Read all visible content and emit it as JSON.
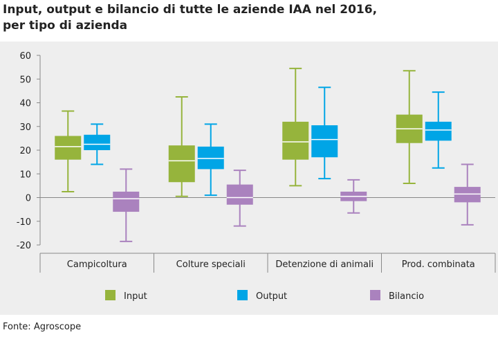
{
  "title_lines": [
    "Input, output e bilancio di tutte le aziende IAA nel 2016,",
    "per tipo di azienda"
  ],
  "source": "Fonte: Agroscope",
  "colors": {
    "input": "#96b43c",
    "output": "#00a5e6",
    "bilancio": "#aa82be",
    "axis": "#888888",
    "text": "#222222"
  },
  "chart_data": {
    "type": "boxplot",
    "title": "Input, output e bilancio di tutte le aziende IAA nel 2016, per tipo di azienda",
    "ylim": [
      -20,
      60
    ],
    "yticks": [
      -20,
      -10,
      0,
      10,
      20,
      30,
      40,
      50,
      60
    ],
    "ytick_labels": [
      "-20",
      "-10",
      "0",
      "10",
      "20",
      "30",
      "40",
      "50",
      "60"
    ],
    "categories": [
      "Campicoltura",
      "Colture speciali",
      "Detenzione di animali",
      "Prod. combinata"
    ],
    "legend": [
      "Input",
      "Output",
      "Bilancio"
    ],
    "legend_position": "bottom",
    "series": [
      {
        "name": "Input",
        "color": "#96b43c",
        "boxes": [
          {
            "min": 2.5,
            "q1": 16,
            "median": 21.5,
            "q3": 26,
            "max": 36.5
          },
          {
            "min": 0.5,
            "q1": 6.5,
            "median": 15.5,
            "q3": 22,
            "max": 42.5
          },
          {
            "min": 5,
            "q1": 16,
            "median": 23.5,
            "q3": 32,
            "max": 54.5
          },
          {
            "min": 6,
            "q1": 23,
            "median": 29,
            "q3": 35,
            "max": 53.5
          }
        ]
      },
      {
        "name": "Output",
        "color": "#00a5e6",
        "boxes": [
          {
            "min": 14,
            "q1": 20,
            "median": 22.5,
            "q3": 26.5,
            "max": 31
          },
          {
            "min": 1,
            "q1": 12,
            "median": 16.5,
            "q3": 21.5,
            "max": 31
          },
          {
            "min": 8,
            "q1": 17,
            "median": 24.5,
            "q3": 30.5,
            "max": 46.5
          },
          {
            "min": 12.5,
            "q1": 24,
            "median": 28.5,
            "q3": 32,
            "max": 44.5
          }
        ]
      },
      {
        "name": "Bilancio",
        "color": "#aa82be",
        "boxes": [
          {
            "min": -18.5,
            "q1": -6,
            "median": -0.5,
            "q3": 2.5,
            "max": 12
          },
          {
            "min": -12,
            "q1": -3,
            "median": 0,
            "q3": 5.5,
            "max": 11.5
          },
          {
            "min": -6.5,
            "q1": -1.5,
            "median": 0.5,
            "q3": 2.5,
            "max": 7.5
          },
          {
            "min": -11.5,
            "q1": -2,
            "median": 1.5,
            "q3": 4.5,
            "max": 14
          }
        ]
      }
    ]
  }
}
